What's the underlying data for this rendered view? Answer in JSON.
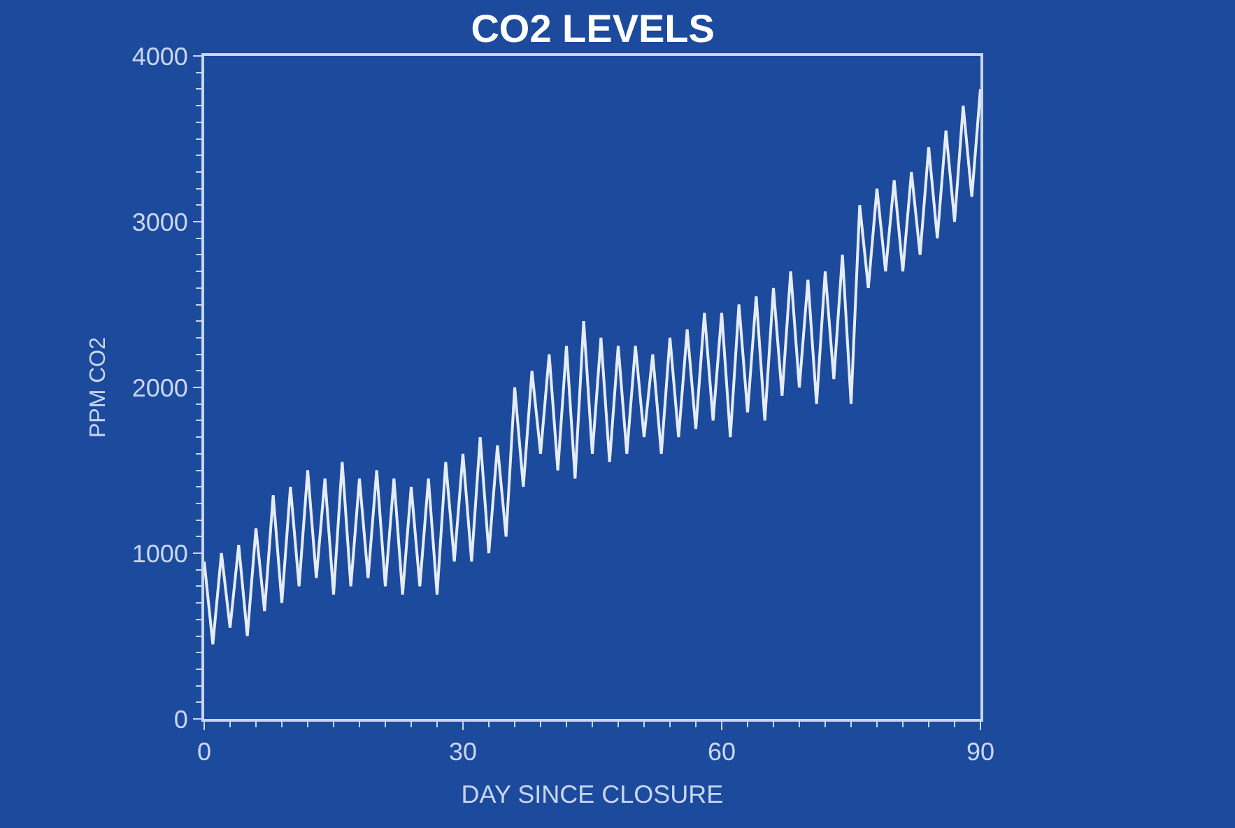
{
  "chart_data": {
    "type": "line",
    "title": "CO2 LEVELS",
    "xlabel": "DAY SINCE CLOSURE",
    "ylabel": "PPM CO2",
    "x": [
      0,
      1,
      2,
      3,
      4,
      5,
      6,
      7,
      8,
      9,
      10,
      11,
      12,
      13,
      14,
      15,
      16,
      17,
      18,
      19,
      20,
      21,
      22,
      23,
      24,
      25,
      26,
      27,
      28,
      29,
      30,
      31,
      32,
      33,
      34,
      35,
      36,
      37,
      38,
      39,
      40,
      41,
      42,
      43,
      44,
      45,
      46,
      47,
      48,
      49,
      50,
      51,
      52,
      53,
      54,
      55,
      56,
      57,
      58,
      59,
      60,
      61,
      62,
      63,
      64,
      65,
      66,
      67,
      68,
      69,
      70,
      71,
      72,
      73,
      74,
      75,
      76,
      77,
      78,
      79,
      80,
      81,
      82,
      83,
      84,
      85,
      86,
      87,
      88,
      89,
      90
    ],
    "series": [
      {
        "color": "#e6ecf5",
        "values": [
          950,
          450,
          1000,
          550,
          1050,
          500,
          1150,
          650,
          1350,
          700,
          1400,
          800,
          1500,
          850,
          1450,
          750,
          1550,
          800,
          1450,
          850,
          1500,
          800,
          1450,
          750,
          1400,
          800,
          1450,
          750,
          1550,
          950,
          1600,
          950,
          1700,
          1000,
          1650,
          1100,
          2000,
          1400,
          2100,
          1600,
          2200,
          1500,
          2250,
          1450,
          2400,
          1600,
          2300,
          1550,
          2250,
          1600,
          2250,
          1700,
          2200,
          1600,
          2300,
          1700,
          2350,
          1750,
          2450,
          1800,
          2450,
          1700,
          2500,
          1850,
          2550,
          1800,
          2600,
          1950,
          2700,
          2000,
          2650,
          1900,
          2700,
          2050,
          2800,
          1900,
          3100,
          2600,
          3200,
          2700,
          3250,
          2700,
          3300,
          2800,
          3450,
          2900,
          3550,
          3000,
          3700,
          3150,
          3800
        ]
      }
    ],
    "xlim": [
      0,
      90
    ],
    "xticks": [
      0,
      30,
      60,
      90
    ],
    "ylim": [
      0,
      4000
    ],
    "yticks": [
      0,
      1000,
      2000,
      3000,
      4000
    ],
    "grid": false,
    "legend": false,
    "marker": "none",
    "line_style": "solid"
  }
}
